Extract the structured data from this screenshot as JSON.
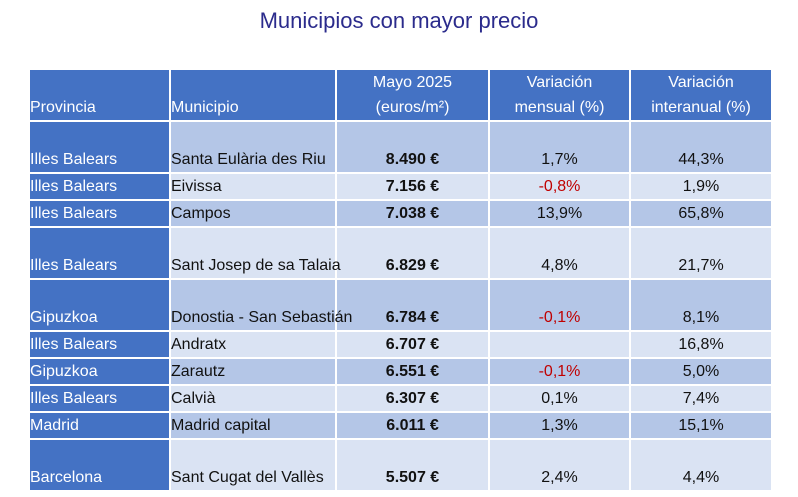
{
  "title": "Municipios con mayor precio",
  "headers": {
    "provincia": "Provincia",
    "municipio": "Municipio",
    "precio_line1": "Mayo 2025",
    "precio_line2": "(euros/m²)",
    "mensual_line1": "Variación",
    "mensual_line2": "mensual (%)",
    "interanual_line1": "Variación",
    "interanual_line2": "interanual (%)"
  },
  "rows": [
    {
      "provincia": "Illes Balears",
      "municipio": "Santa Eulària des Riu",
      "precio": "8.490 €",
      "mensual": "1,7%",
      "interanual": "44,3%"
    },
    {
      "provincia": "Illes Balears",
      "municipio": "Eivissa",
      "precio": "7.156 €",
      "mensual": "-0,8%",
      "interanual": "1,9%"
    },
    {
      "provincia": "Illes Balears",
      "municipio": "Campos",
      "precio": "7.038 €",
      "mensual": "13,9%",
      "interanual": "65,8%"
    },
    {
      "provincia": "Illes Balears",
      "municipio": "Sant Josep de sa Talaia",
      "precio": "6.829 €",
      "mensual": "4,8%",
      "interanual": "21,7%"
    },
    {
      "provincia": "Gipuzkoa",
      "municipio": "Donostia - San Sebastián",
      "precio": "6.784 €",
      "mensual": "-0,1%",
      "interanual": "8,1%"
    },
    {
      "provincia": "Illes Balears",
      "municipio": "Andratx",
      "precio": "6.707 €",
      "mensual": "",
      "interanual": "16,8%"
    },
    {
      "provincia": "Gipuzkoa",
      "municipio": "Zarautz",
      "precio": "6.551 €",
      "mensual": "-0,1%",
      "interanual": "5,0%"
    },
    {
      "provincia": "Illes Balears",
      "municipio": "Calvià",
      "precio": "6.307 €",
      "mensual": "0,1%",
      "interanual": "7,4%"
    },
    {
      "provincia": "Madrid",
      "municipio": "Madrid capital",
      "precio": "6.011 €",
      "mensual": "1,3%",
      "interanual": "15,1%"
    },
    {
      "provincia": "Barcelona",
      "municipio": "Sant Cugat del Vallès",
      "precio": "5.507 €",
      "mensual": "2,4%",
      "interanual": "4,4%"
    }
  ]
}
